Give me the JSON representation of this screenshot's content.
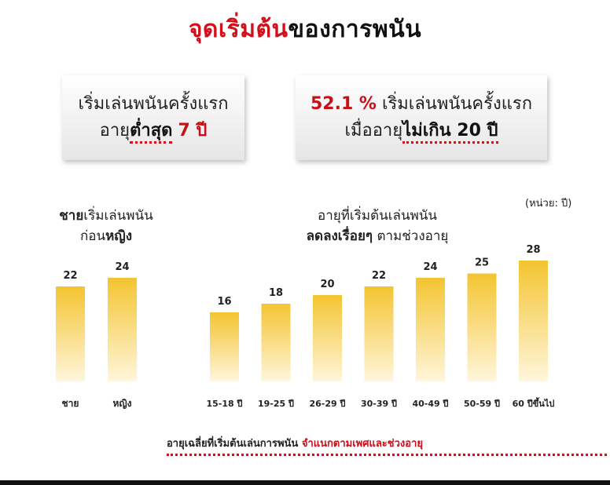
{
  "title": {
    "part_red": "จุดเริ่มต้น",
    "part_black": "ของการพนัน"
  },
  "card_left": {
    "line1": "เริ่มเล่นพนันครั้งแรก",
    "line2_prefix": "อายุ",
    "line2_emph": "ต่ำสุด",
    "line2_value": "7 ปี"
  },
  "card_right": {
    "percent": "52.1 %",
    "line1_rest": " เริ่มเล่นพนันครั้งแรก",
    "line2_prefix": "เมื่ออายุ",
    "line2_emph": "ไม่เกิน 20 ปี"
  },
  "unit_label": "(หน่วย: ปี)",
  "left_chart_caption": {
    "bold1": "ชาย",
    "rest1": "เริ่มเล่นพนัน",
    "prefix2": "ก่อน",
    "bold2": "หญิง"
  },
  "right_chart_caption": {
    "line1": "อายุที่เริ่มต้นเล่นพนัน",
    "bold2": "ลดลงเรื่อยๆ",
    "rest2": " ตามช่วงอายุ"
  },
  "chart_data": [
    {
      "type": "bar",
      "categories": [
        "ชาย",
        "หญิง"
      ],
      "values": [
        22,
        24
      ],
      "ylim": [
        0,
        30
      ],
      "bar_color": "#f4c430"
    },
    {
      "type": "bar",
      "categories": [
        "15-18 ปี",
        "19-25 ปี",
        "26-29 ปี",
        "30-39 ปี",
        "40-49 ปี",
        "50-59 ปี",
        "60 ปีขึ้นไป"
      ],
      "values": [
        16,
        18,
        20,
        22,
        24,
        25,
        28
      ],
      "ylim": [
        0,
        30
      ],
      "bar_color": "#f4c430"
    }
  ],
  "footnote": {
    "black": "อายุเฉลี่ยที่เริ่มต้นเล่นการพนัน ",
    "red": "จำแนกตามเพศและช่วงอายุ"
  },
  "colors": {
    "accent_red": "#d0101b",
    "bar_top": "#f4c430",
    "bar_bottom": "#fff6dc"
  }
}
